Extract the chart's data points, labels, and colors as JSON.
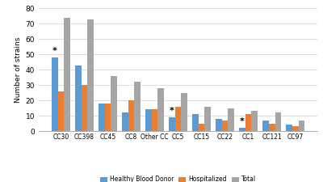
{
  "categories": [
    "CC30",
    "CC398",
    "CC45",
    "CC8",
    "Other CC",
    "CC5",
    "CC15",
    "CC22",
    "CC1",
    "CC121",
    "CC97"
  ],
  "healthy_blood_donor": [
    48,
    43,
    18,
    12,
    14,
    9,
    11,
    8,
    2,
    7,
    4
  ],
  "hospitalized": [
    26,
    30,
    18,
    20,
    14,
    16,
    5,
    7,
    11,
    5,
    3
  ],
  "total": [
    74,
    73,
    36,
    32,
    28,
    25,
    16,
    15,
    13,
    12,
    7
  ],
  "color_blue": "#5B9BD5",
  "color_orange": "#ED7D31",
  "color_gray": "#A5A5A5",
  "ylabel": "Number of strains",
  "ylim": [
    0,
    80
  ],
  "yticks": [
    0,
    10,
    20,
    30,
    40,
    50,
    60,
    70,
    80
  ],
  "legend_labels": [
    "Healthy Blood Donor",
    "Hospitalized",
    "Total"
  ],
  "asterisk_categories": [
    "CC30",
    "CC5",
    "CC1"
  ],
  "bar_width": 0.27
}
